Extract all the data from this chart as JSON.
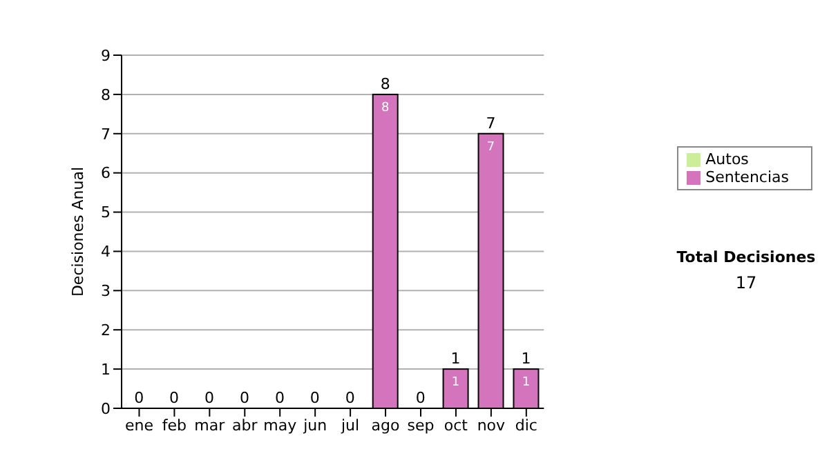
{
  "chart_data": {
    "type": "bar",
    "stacked": true,
    "ylabel": "Decisiones Anual",
    "categories": [
      "ene",
      "feb",
      "mar",
      "abr",
      "may",
      "jun",
      "jul",
      "ago",
      "sep",
      "oct",
      "nov",
      "dic"
    ],
    "series": [
      {
        "name": "Sentencias",
        "color": "#d474bc",
        "values": [
          0,
          0,
          0,
          0,
          0,
          0,
          0,
          8,
          0,
          1,
          7,
          1
        ],
        "value_labels": [
          null,
          null,
          null,
          null,
          null,
          null,
          null,
          "8",
          null,
          "1",
          "7",
          "1"
        ]
      },
      {
        "name": "Autos",
        "color": "#ccee99",
        "values": [
          0,
          0,
          0,
          0,
          0,
          0,
          0,
          0,
          0,
          0,
          0,
          0
        ]
      }
    ],
    "totals": [
      "0",
      "0",
      "0",
      "0",
      "0",
      "0",
      "0",
      "8",
      "0",
      "1",
      "7",
      "1"
    ],
    "ylim": [
      0,
      9
    ],
    "yticks": [
      0,
      1,
      2,
      3,
      4,
      5,
      6,
      7,
      8,
      9
    ],
    "grid": "y",
    "legend": "right",
    "annotations": [
      "Total Decisiones",
      "17"
    ]
  }
}
